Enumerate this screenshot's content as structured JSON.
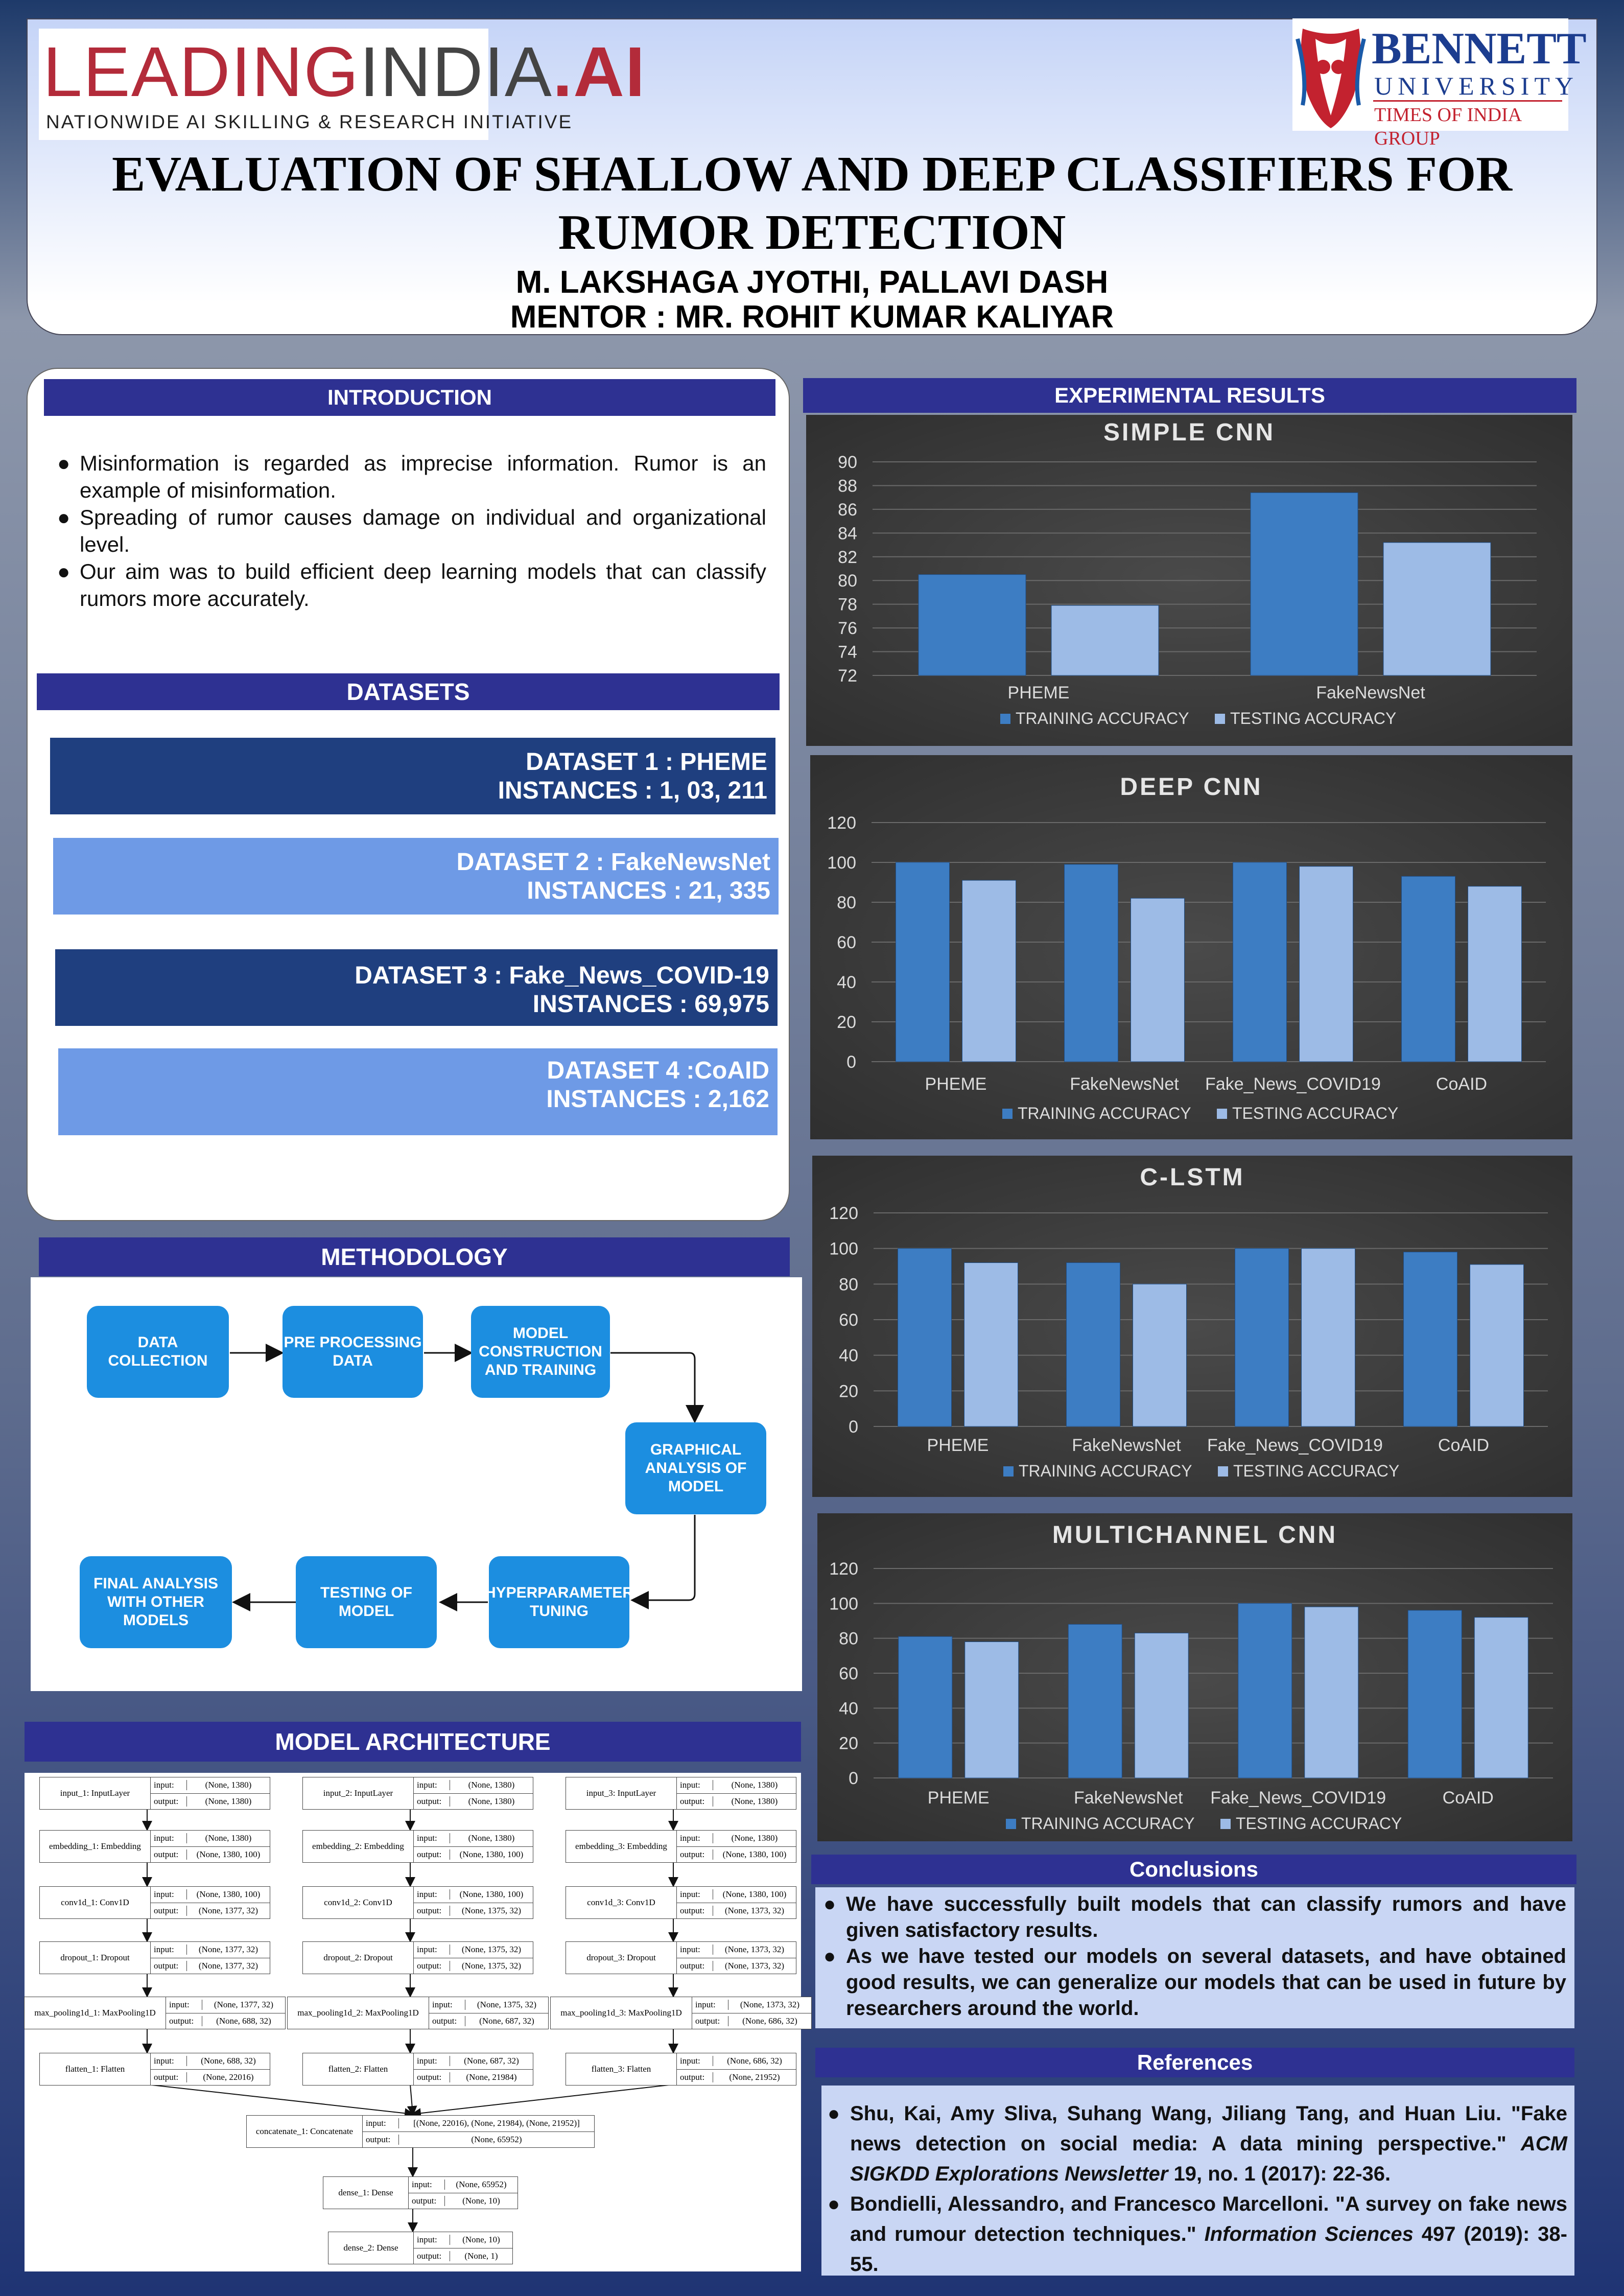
{
  "header": {
    "title_line1": "EVALUATION OF SHALLOW AND DEEP CLASSIFIERS FOR",
    "title_line2": "RUMOR DETECTION",
    "authors": "M. LAKSHAGA JYOTHI, PALLAVI DASH",
    "mentor": "MENTOR : MR. ROHIT KUMAR KALIYAR"
  },
  "logos": {
    "left_main_a": "LEADING",
    "left_main_b": "INDIA",
    "left_main_c": ".AI",
    "left_tagline": "NATIONWIDE AI SKILLING & RESEARCH INITIATIVE",
    "right_name_a": "BENNETT",
    "right_name_b": "UNIVERSITY",
    "right_group": "TIMES OF INDIA GROUP"
  },
  "introduction": {
    "heading": "INTRODUCTION",
    "bullets": [
      "Misinformation is regarded as imprecise information. Rumor is an example of misinformation.",
      "Spreading of rumor causes damage on individual and organizational level.",
      "Our aim was to build efficient deep learning models that can classify rumors more accurately."
    ]
  },
  "datasets": {
    "heading": "DATASETS",
    "items": [
      {
        "name": "DATASET 1 : PHEME",
        "instances": "INSTANCES : 1, 03, 211",
        "color": "#1f3f7f"
      },
      {
        "name": "DATASET 2 : FakeNewsNet",
        "instances": "INSTANCES : 21, 335",
        "color": "#6e9ae6"
      },
      {
        "name": "DATASET 3 : Fake_News_COVID-19",
        "instances": "INSTANCES : 69,975",
        "color": "#1f3f7f"
      },
      {
        "name": "DATASET 4 :CoAID",
        "instances": "INSTANCES : 2,162",
        "color": "#6e9ae6"
      }
    ]
  },
  "methodology": {
    "heading": "METHODOLOGY",
    "steps": [
      "DATA COLLECTION",
      "PRE PROCESSING DATA",
      "MODEL CONSTRUCTION AND TRAINING",
      "GRAPHICAL ANALYSIS OF MODEL",
      "HYPERPARAMETER TUNING",
      "TESTING OF MODEL",
      "FINAL ANALYSIS WITH OTHER MODELS"
    ]
  },
  "architecture": {
    "heading": "MODEL ARCHITECTURE",
    "branches": [
      [
        {
          "name": "input_1: InputLayer",
          "in": "(None, 1380)",
          "out": "(None, 1380)"
        },
        {
          "name": "embedding_1: Embedding",
          "in": "(None, 1380)",
          "out": "(None, 1380, 100)"
        },
        {
          "name": "conv1d_1: Conv1D",
          "in": "(None, 1380, 100)",
          "out": "(None, 1377, 32)"
        },
        {
          "name": "dropout_1: Dropout",
          "in": "(None, 1377, 32)",
          "out": "(None, 1377, 32)"
        },
        {
          "name": "max_pooling1d_1: MaxPooling1D",
          "in": "(None, 1377, 32)",
          "out": "(None, 688, 32)"
        },
        {
          "name": "flatten_1: Flatten",
          "in": "(None, 688, 32)",
          "out": "(None, 22016)"
        }
      ],
      [
        {
          "name": "input_2: InputLayer",
          "in": "(None, 1380)",
          "out": "(None, 1380)"
        },
        {
          "name": "embedding_2: Embedding",
          "in": "(None, 1380)",
          "out": "(None, 1380, 100)"
        },
        {
          "name": "conv1d_2: Conv1D",
          "in": "(None, 1380, 100)",
          "out": "(None, 1375, 32)"
        },
        {
          "name": "dropout_2: Dropout",
          "in": "(None, 1375, 32)",
          "out": "(None, 1375, 32)"
        },
        {
          "name": "max_pooling1d_2: MaxPooling1D",
          "in": "(None, 1375, 32)",
          "out": "(None, 687, 32)"
        },
        {
          "name": "flatten_2: Flatten",
          "in": "(None, 687, 32)",
          "out": "(None, 21984)"
        }
      ],
      [
        {
          "name": "input_3: InputLayer",
          "in": "(None, 1380)",
          "out": "(None, 1380)"
        },
        {
          "name": "embedding_3: Embedding",
          "in": "(None, 1380)",
          "out": "(None, 1380, 100)"
        },
        {
          "name": "conv1d_3: Conv1D",
          "in": "(None, 1380, 100)",
          "out": "(None, 1373, 32)"
        },
        {
          "name": "dropout_3: Dropout",
          "in": "(None, 1373, 32)",
          "out": "(None, 1373, 32)"
        },
        {
          "name": "max_pooling1d_3: MaxPooling1D",
          "in": "(None, 1373, 32)",
          "out": "(None, 686, 32)"
        },
        {
          "name": "flatten_3: Flatten",
          "in": "(None, 686, 32)",
          "out": "(None, 21952)"
        }
      ]
    ],
    "merge": [
      {
        "name": "concatenate_1: Concatenate",
        "in": "[(None, 22016), (None, 21984), (None, 21952)]",
        "out": "(None, 65952)"
      },
      {
        "name": "dense_1: Dense",
        "in": "(None, 65952)",
        "out": "(None, 10)"
      },
      {
        "name": "dense_2: Dense",
        "in": "(None, 10)",
        "out": "(None, 1)"
      }
    ],
    "input_key": "input:",
    "output_key": "output:"
  },
  "results": {
    "heading": "EXPERIMENTAL RESULTS"
  },
  "chart_data": [
    {
      "type": "bar",
      "title": "SIMPLE CNN",
      "categories": [
        "PHEME",
        "FakeNewsNet"
      ],
      "series": [
        {
          "name": "TRAINING ACCURACY",
          "values": [
            80.5,
            87.4
          ]
        },
        {
          "name": "TESTING ACCURACY",
          "values": [
            77.9,
            83.2
          ]
        }
      ],
      "ylim": [
        72,
        90
      ],
      "yticks": [
        72,
        74,
        76,
        78,
        80,
        82,
        84,
        86,
        88,
        90
      ],
      "grid": true,
      "legend": "bottom",
      "colors": [
        "#3d7dc3",
        "#9dbbe6"
      ]
    },
    {
      "type": "bar",
      "title": "DEEP CNN",
      "categories": [
        "PHEME",
        "FakeNewsNet",
        "Fake_News_COVID19",
        "CoAID"
      ],
      "series": [
        {
          "name": "TRAINING ACCURACY",
          "values": [
            100,
            99,
            100,
            93
          ]
        },
        {
          "name": "TESTING ACCURACY",
          "values": [
            91,
            82,
            98,
            88
          ]
        }
      ],
      "ylim": [
        0,
        120
      ],
      "yticks": [
        0,
        20,
        40,
        60,
        80,
        100,
        120
      ],
      "grid": true,
      "legend": "bottom",
      "colors": [
        "#3d7dc3",
        "#9dbbe6"
      ]
    },
    {
      "type": "bar",
      "title": "C-LSTM",
      "categories": [
        "PHEME",
        "FakeNewsNet",
        "Fake_News_COVID19",
        "CoAID"
      ],
      "series": [
        {
          "name": "TRAINING ACCURACY",
          "values": [
            100,
            92,
            100,
            98
          ]
        },
        {
          "name": "TESTING ACCURACY",
          "values": [
            92,
            80,
            100,
            91
          ]
        }
      ],
      "ylim": [
        0,
        120
      ],
      "yticks": [
        0,
        20,
        40,
        60,
        80,
        100,
        120
      ],
      "grid": true,
      "legend": "bottom",
      "colors": [
        "#3d7dc3",
        "#9dbbe6"
      ]
    },
    {
      "type": "bar",
      "title": "MULTICHANNEL CNN",
      "categories": [
        "PHEME",
        "FakeNewsNet",
        "Fake_News_COVID19",
        "CoAID"
      ],
      "series": [
        {
          "name": "TRAINING ACCURACY",
          "values": [
            81,
            88,
            100,
            96
          ]
        },
        {
          "name": "TESTING ACCURACY",
          "values": [
            78,
            83,
            98,
            92
          ]
        }
      ],
      "ylim": [
        0,
        120
      ],
      "yticks": [
        0,
        20,
        40,
        60,
        80,
        100,
        120
      ],
      "grid": true,
      "legend": "bottom",
      "colors": [
        "#3d7dc3",
        "#9dbbe6"
      ]
    }
  ],
  "conclusions": {
    "heading": "Conclusions",
    "bullets": [
      "We have successfully built models that can classify rumors and have given satisfactory results.",
      "As we have tested our models on several datasets, and have obtained good results, we can generalize our models that can be used in future by researchers around the world."
    ]
  },
  "references": {
    "heading": "References",
    "items": [
      {
        "authors": "Shu, Kai, Amy Sliva, Suhang Wang, Jiliang Tang, and Huan Liu. \"Fake news detection on social media: A data mining perspective.\"",
        "venue": "ACM SIGKDD Explorations Newsletter",
        "rest": "19, no. 1 (2017): 22-36."
      },
      {
        "authors": "Bondielli, Alessandro, and Francesco Marcelloni. \"A survey on fake news and rumour detection techniques.\"",
        "venue": "Information Sciences",
        "rest": "497 (2019): 38-55."
      }
    ]
  }
}
